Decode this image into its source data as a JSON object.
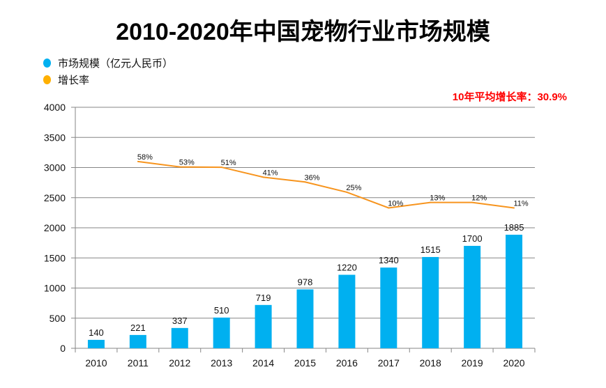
{
  "chart_data": {
    "type": "bar",
    "title": "2010-2020年中国宠物行业市场规模",
    "annotation": "10年平均增长率：30.9%",
    "categories": [
      "2010",
      "2011",
      "2012",
      "2013",
      "2014",
      "2015",
      "2016",
      "2017",
      "2018",
      "2019",
      "2020"
    ],
    "ylim": [
      0,
      4000
    ],
    "yticks": [
      0,
      500,
      1000,
      1500,
      2000,
      2500,
      3000,
      3500,
      4000
    ],
    "grid": true,
    "legend_position": "top-left",
    "series": [
      {
        "name": "市场规模（亿元人民币）",
        "type": "bar",
        "color": "#00b0f0",
        "values": [
          140,
          221,
          337,
          510,
          719,
          978,
          1220,
          1340,
          1515,
          1700,
          1885
        ]
      },
      {
        "name": "增长率",
        "type": "line",
        "color": "#f7941d",
        "values": [
          null,
          58,
          53,
          51,
          41,
          36,
          25,
          10,
          13,
          12,
          11
        ],
        "labels": [
          null,
          "58%",
          "53%",
          "51%",
          "41%",
          "36%",
          "25%",
          "10%",
          "13%",
          "12%",
          "11%"
        ],
        "plotted_y": [
          null,
          3100,
          3010,
          3005,
          2840,
          2760,
          2590,
          2330,
          2420,
          2420,
          2330
        ]
      }
    ]
  },
  "legend": {
    "items": [
      {
        "label": "市场规模（亿元人民币）",
        "color": "#00b0f0"
      },
      {
        "label": "增长率",
        "color": "#ffb000"
      }
    ]
  }
}
